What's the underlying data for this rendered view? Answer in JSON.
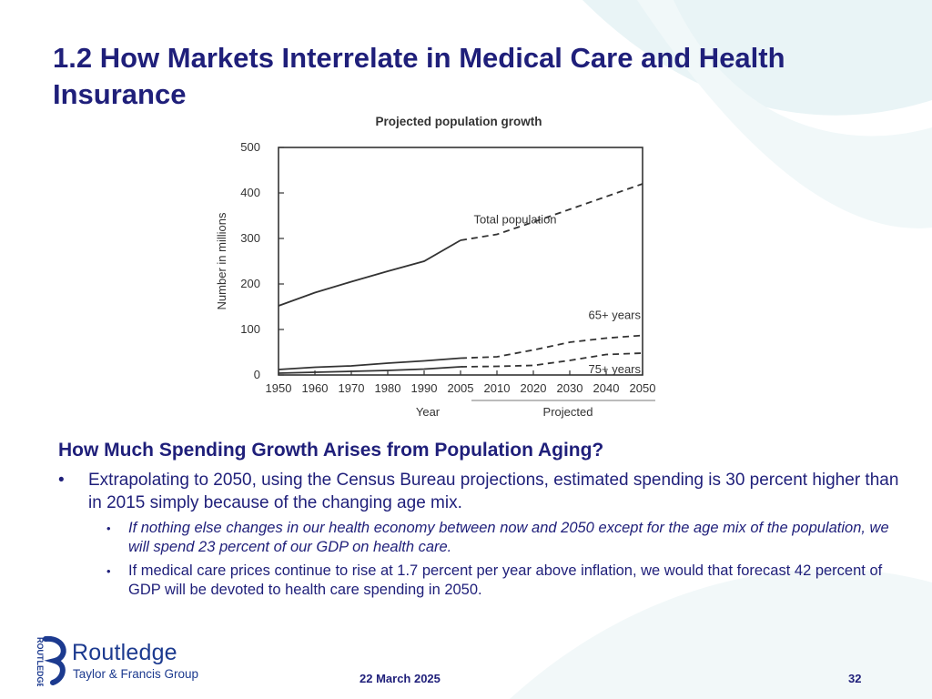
{
  "slide": {
    "title": "1.2  How Markets Interrelate in Medical Care and Health Insurance",
    "section_heading": "How Much Spending Growth Arises from Population Aging?",
    "bullets": [
      {
        "text": "Extrapolating to 2050, using the Census Bureau projections, estimated spending is 30 percent higher than in 2015 simply because of the changing age mix."
      },
      {
        "text": "If nothing else changes in our health economy between now and 2050 except for the age mix of the population, we will spend 23 percent of our GDP on health care."
      },
      {
        "text": "If medical care prices continue to rise at 1.7 percent per year above inflation, we would that forecast 42 percent of GDP will be devoted to health care spending in 2050."
      }
    ],
    "bullet_glyph": "•"
  },
  "logo": {
    "name": "Routledge",
    "tagline": "Taylor & Francis Group",
    "vertical": "ROUTLEDGE"
  },
  "footer": {
    "date": "22 March 2025",
    "page": "32"
  },
  "colors": {
    "title": "#1f1f7a",
    "logo": "#1c3a8f",
    "line": "#333333"
  },
  "chart_data": {
    "type": "line",
    "title": "Projected population growth",
    "ylabel": "Number in millions",
    "xlabel": "Year",
    "xlabel_projected": "Projected",
    "ylim": [
      0,
      500
    ],
    "yticks": [
      0,
      100,
      200,
      300,
      400,
      500
    ],
    "x_ticks": [
      "1950",
      "1960",
      "1970",
      "1980",
      "1990",
      "2005",
      "2010",
      "2020",
      "2030",
      "2040",
      "2050"
    ],
    "grid": false,
    "series": [
      {
        "name": "Total population",
        "values": [
          152,
          181,
          205,
          228,
          250,
          296,
          309,
          336,
          364,
          392,
          420
        ],
        "projected_from": 5
      },
      {
        "name": "65+ years",
        "values": [
          12,
          17,
          20,
          26,
          31,
          37,
          40,
          55,
          72,
          81,
          87
        ],
        "projected_from": 5
      },
      {
        "name": "75+ years",
        "values": [
          4,
          6,
          8,
          10,
          13,
          18,
          19,
          21,
          32,
          45,
          48
        ],
        "projected_from": 5
      }
    ]
  }
}
